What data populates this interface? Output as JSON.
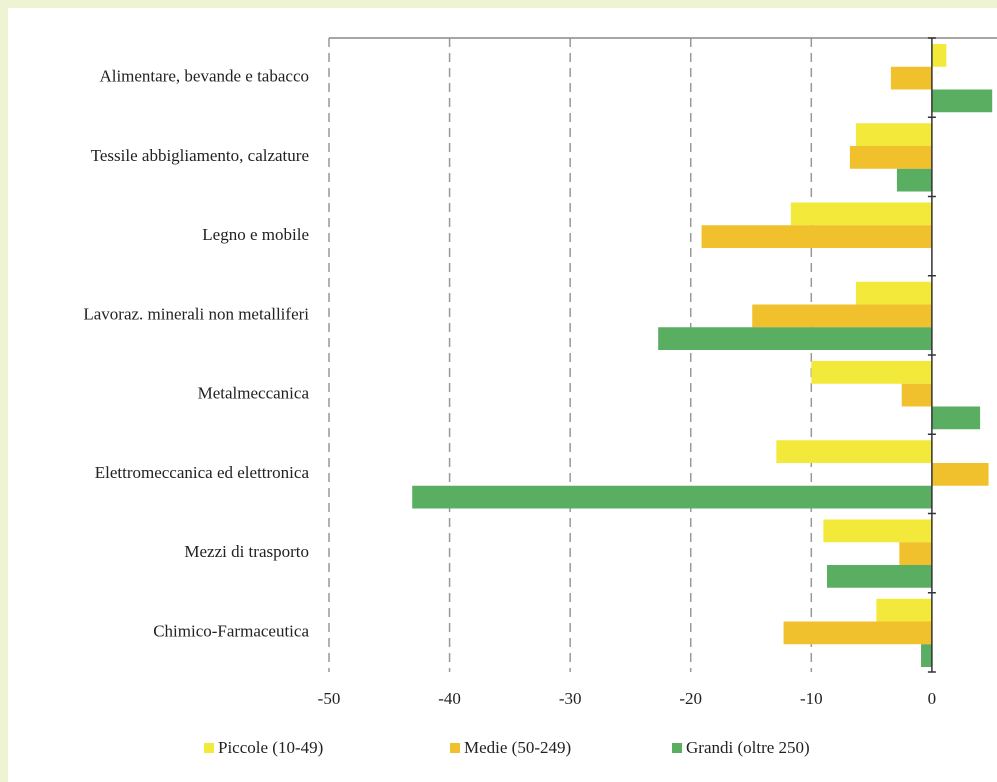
{
  "chart_data": {
    "type": "hbar",
    "categories": [
      "Alimentare, bevande e tabacco",
      "Tessile abbigliamento, calzature",
      "Legno e mobile",
      "Lavoraz. minerali non metalliferi",
      "Metalmeccanica",
      "Elettromeccanica ed elettronica",
      "Mezzi di trasporto",
      "Chimico-Farmaceutica"
    ],
    "series": [
      {
        "name": "Piccole (10-49)",
        "color": "#f2e93a",
        "values": [
          1.2,
          -6.3,
          -11.7,
          -6.3,
          -10.0,
          -12.9,
          -9.0,
          -4.6
        ]
      },
      {
        "name": "Medie (50-249)",
        "color": "#f0c12c",
        "values": [
          -3.4,
          -6.8,
          -19.1,
          -14.9,
          -2.5,
          4.7,
          -2.7,
          -12.3
        ]
      },
      {
        "name": "Grandi (oltre 250)",
        "color": "#5aae62",
        "values": [
          5.0,
          -2.9,
          0,
          -22.7,
          4.0,
          -43.1,
          -8.7,
          -0.9
        ]
      }
    ],
    "xlim": [
      -50,
      5.4
    ],
    "xticks": [
      -50,
      -40,
      -30,
      -20,
      -10,
      0
    ],
    "grid": true
  }
}
